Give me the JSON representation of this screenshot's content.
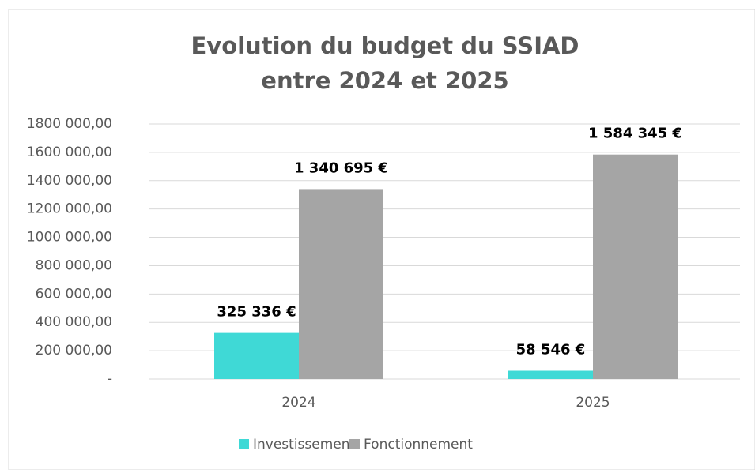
{
  "chart_data": {
    "type": "bar",
    "title": [
      "Evolution du budget du SSIAD",
      "entre 2024 et 2025"
    ],
    "categories": [
      "2024",
      "2025"
    ],
    "series": [
      {
        "name": "Investissement",
        "color": "#3fd9d6",
        "values": [
          325336,
          58546
        ],
        "value_labels": [
          "325 336 €",
          "58 546 €"
        ]
      },
      {
        "name": "Fonctionnement",
        "color": "#a5a5a5",
        "values": [
          1340695,
          1584345
        ],
        "value_labels": [
          "1 340 695 €",
          "1 584 345 €"
        ]
      }
    ],
    "ylim": [
      0,
      1800000
    ],
    "yticks": [
      {
        "value": 0,
        "label": "-"
      },
      {
        "value": 200000,
        "label": "200 000,00"
      },
      {
        "value": 400000,
        "label": "400 000,00"
      },
      {
        "value": 600000,
        "label": "600 000,00"
      },
      {
        "value": 800000,
        "label": "800 000,00"
      },
      {
        "value": 1000000,
        "label": "1000 000,00"
      },
      {
        "value": 1200000,
        "label": "1200 000,00"
      },
      {
        "value": 1400000,
        "label": "1400 000,00"
      },
      {
        "value": 1600000,
        "label": "1600 000,00"
      },
      {
        "value": 1800000,
        "label": "1800 000,00"
      }
    ],
    "grid": true,
    "legend": "bottom"
  }
}
